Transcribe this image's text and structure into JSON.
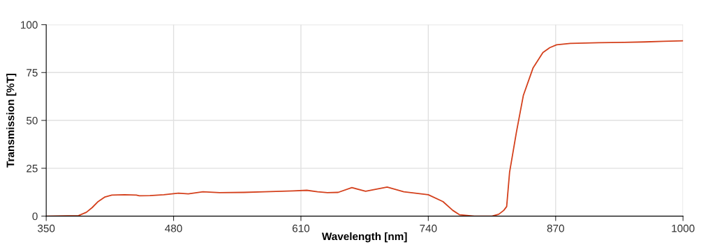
{
  "chart_data": {
    "type": "line",
    "xlabel": "Wavelength [nm]",
    "ylabel": "Transmission [%T]",
    "xlim": [
      350,
      1000
    ],
    "ylim": [
      0,
      100
    ],
    "xticks": [
      350,
      480,
      610,
      740,
      870,
      1000
    ],
    "yticks": [
      0,
      25,
      50,
      75,
      100
    ],
    "grid": true,
    "legend": false,
    "marker": "none",
    "line_style": "solid",
    "series": [
      {
        "color": "#d4401c",
        "x": [
          350,
          383,
          391,
          397,
          403,
          410,
          417,
          430,
          442,
          445,
          456,
          470,
          485,
          495,
          510,
          527,
          552,
          573,
          602,
          616,
          627,
          637,
          648,
          662,
          676,
          698,
          715,
          740,
          755,
          765,
          772,
          787,
          805,
          812,
          817,
          820,
          823,
          830,
          837,
          847,
          857,
          864,
          871,
          885,
          900,
          914,
          940,
          961,
          980,
          1000
        ],
        "values": [
          0,
          0.3,
          2,
          4.5,
          7.6,
          10,
          11,
          11.2,
          11,
          10.6,
          10.7,
          11.2,
          12,
          11.6,
          12.7,
          12.3,
          12.4,
          12.7,
          13.2,
          13.5,
          12.7,
          12.3,
          12.4,
          14.9,
          13,
          15.2,
          12.7,
          11.2,
          7.6,
          3,
          0.7,
          0,
          0,
          1,
          3,
          5,
          23,
          44,
          63,
          77.5,
          85.5,
          88,
          89.5,
          90.2,
          90.4,
          90.6,
          90.8,
          91,
          91.3,
          91.6
        ]
      }
    ]
  }
}
